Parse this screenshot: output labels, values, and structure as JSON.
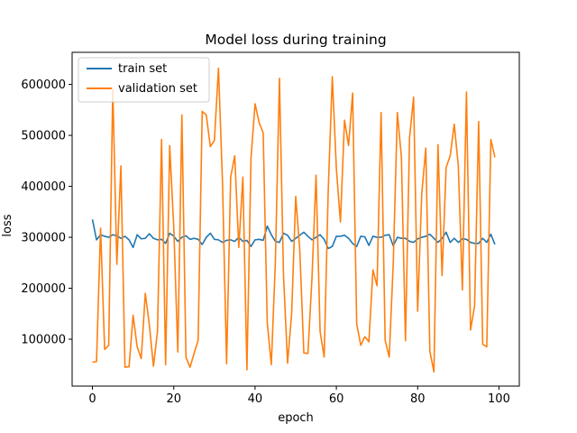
{
  "chart_data": {
    "type": "line",
    "title": "Model loss during training",
    "xlabel": "epoch",
    "ylabel": "loss",
    "xlim": [
      -5,
      105
    ],
    "ylim": [
      8000,
      663000
    ],
    "xticks": [
      0,
      20,
      40,
      60,
      80,
      100
    ],
    "yticks": [
      100000,
      200000,
      300000,
      400000,
      500000,
      600000
    ],
    "ytick_labels": [
      "100000",
      "200000",
      "300000",
      "400000",
      "500000",
      "600000"
    ],
    "grid": false,
    "legend_position": "top-left",
    "series": [
      {
        "name": "train set",
        "color": "#1f77b4",
        "x": [
          0,
          1,
          2,
          3,
          4,
          5,
          6,
          7,
          8,
          9,
          10,
          11,
          12,
          13,
          14,
          15,
          16,
          17,
          18,
          19,
          20,
          21,
          22,
          23,
          24,
          25,
          26,
          27,
          28,
          29,
          30,
          31,
          32,
          33,
          34,
          35,
          36,
          37,
          38,
          39,
          40,
          41,
          42,
          43,
          44,
          45,
          46,
          47,
          48,
          49,
          50,
          51,
          52,
          53,
          54,
          55,
          56,
          57,
          58,
          59,
          60,
          61,
          62,
          63,
          64,
          65,
          66,
          67,
          68,
          69,
          70,
          71,
          72,
          73,
          74,
          75,
          76,
          77,
          78,
          79,
          80,
          81,
          82,
          83,
          84,
          85,
          86,
          87,
          88,
          89,
          90,
          91,
          92,
          93,
          94,
          95,
          96,
          97,
          98,
          99
        ],
        "values": [
          335000,
          295000,
          305000,
          302000,
          300000,
          305000,
          303000,
          298000,
          302000,
          295000,
          280000,
          305000,
          297000,
          298000,
          307000,
          298000,
          295000,
          296000,
          288000,
          308000,
          302000,
          292000,
          300000,
          303000,
          296000,
          298000,
          296000,
          286000,
          300000,
          308000,
          296000,
          295000,
          290000,
          294000,
          295000,
          292000,
          300000,
          292000,
          294000,
          282000,
          295000,
          296000,
          294000,
          322000,
          305000,
          292000,
          290000,
          308000,
          304000,
          292000,
          298000,
          304000,
          310000,
          302000,
          295000,
          300000,
          305000,
          296000,
          278000,
          282000,
          302000,
          302000,
          304000,
          298000,
          288000,
          282000,
          302000,
          301000,
          284000,
          302000,
          300000,
          300000,
          304000,
          305000,
          283000,
          300000,
          298000,
          298000,
          292000,
          290000,
          297000,
          300000,
          302000,
          306000,
          298000,
          290000,
          298000,
          310000,
          290000,
          298000,
          290000,
          297000,
          296000,
          290000,
          288000,
          288000,
          298000,
          290000,
          306000,
          286000
        ]
      },
      {
        "name": "validation set",
        "color": "#ff7f0e",
        "x": [
          0,
          1,
          2,
          3,
          4,
          5,
          6,
          7,
          8,
          9,
          10,
          11,
          12,
          13,
          14,
          15,
          16,
          17,
          18,
          19,
          20,
          21,
          22,
          23,
          24,
          25,
          26,
          27,
          28,
          29,
          30,
          31,
          32,
          33,
          34,
          35,
          36,
          37,
          38,
          39,
          40,
          41,
          42,
          43,
          44,
          45,
          46,
          47,
          48,
          49,
          50,
          51,
          52,
          53,
          54,
          55,
          56,
          57,
          58,
          59,
          60,
          61,
          62,
          63,
          64,
          65,
          66,
          67,
          68,
          69,
          70,
          71,
          72,
          73,
          74,
          75,
          76,
          77,
          78,
          79,
          80,
          81,
          82,
          83,
          84,
          85,
          86,
          87,
          88,
          89,
          90,
          91,
          92,
          93,
          94,
          95,
          96,
          97,
          98,
          99
        ],
        "values": [
          55000,
          56000,
          318000,
          80000,
          88000,
          592000,
          247000,
          440000,
          45000,
          46000,
          147000,
          85000,
          62000,
          190000,
          128000,
          47000,
          115000,
          492000,
          50000,
          480000,
          320000,
          75000,
          540000,
          65000,
          45000,
          72000,
          98000,
          547000,
          540000,
          478000,
          490000,
          632000,
          405000,
          52000,
          418000,
          460000,
          280000,
          418000,
          40000,
          455000,
          562000,
          525000,
          505000,
          132000,
          50000,
          252000,
          612000,
          225000,
          53000,
          150000,
          380000,
          275000,
          73000,
          72000,
          220000,
          422000,
          115000,
          65000,
          392000,
          615000,
          435000,
          330000,
          530000,
          480000,
          583000,
          130000,
          88000,
          105000,
          95000,
          236000,
          205000,
          545000,
          98000,
          65000,
          250000,
          545000,
          457000,
          97000,
          495000,
          575000,
          155000,
          385000,
          475000,
          76000,
          36000,
          482000,
          225000,
          437000,
          460000,
          522000,
          440000,
          197000,
          585000,
          118000,
          165000,
          527000,
          90000,
          85000,
          492000,
          457000
        ]
      }
    ]
  }
}
